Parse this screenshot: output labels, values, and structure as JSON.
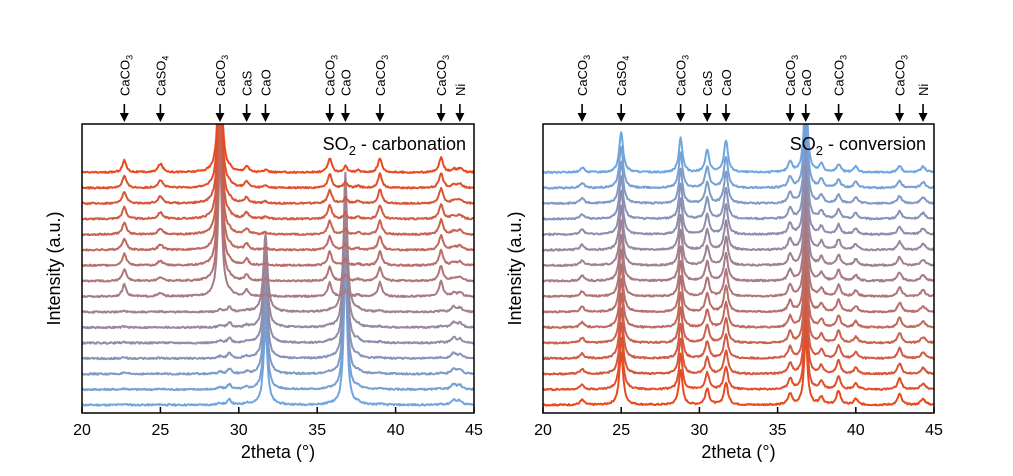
{
  "chart_data": [
    {
      "type": "line",
      "title_main": "SO",
      "title_sub": "2",
      "title_rest": " - carbonation",
      "xlabel": "2theta (°)",
      "ylabel": "Intensity (a.u.)",
      "xlim": [
        20,
        45
      ],
      "xticks": [
        "20",
        "25",
        "30",
        "35",
        "40",
        "45"
      ],
      "n_traces": 16,
      "color_start": "#e84a1e",
      "color_end": "#6fa6e0",
      "peak_markers": [
        {
          "label": "CaCO",
          "sub": "3",
          "x": 22.7
        },
        {
          "label": "CaSO",
          "sub": "4",
          "x": 25.0
        },
        {
          "label": "CaCO",
          "sub": "3",
          "x": 28.8
        },
        {
          "label": "CaS",
          "sub": "",
          "x": 30.5
        },
        {
          "label": "CaO",
          "sub": "",
          "x": 31.7
        },
        {
          "label": "CaCO",
          "sub": "3",
          "x": 35.8
        },
        {
          "label": "CaO",
          "sub": "",
          "x": 36.8
        },
        {
          "label": "CaCO",
          "sub": "3",
          "x": 39.0
        },
        {
          "label": "CaCO",
          "sub": "3",
          "x": 42.9
        },
        {
          "label": "Ni",
          "sub": "",
          "x": 44.1
        }
      ]
    },
    {
      "type": "line",
      "title_main": "SO",
      "title_sub": "2",
      "title_rest": " - conversion",
      "xlabel": "2theta (°)",
      "ylabel": "Intensity (a.u.)",
      "xlim": [
        20,
        45
      ],
      "xticks": [
        "20",
        "25",
        "30",
        "35",
        "40",
        "45"
      ],
      "n_traces": 16,
      "color_start": "#e84a1e",
      "color_end": "#6fa6e0",
      "peak_markers": [
        {
          "label": "CaCO",
          "sub": "3",
          "x": 22.5
        },
        {
          "label": "CaSO",
          "sub": "4",
          "x": 25.0
        },
        {
          "label": "CaCO",
          "sub": "3",
          "x": 28.8
        },
        {
          "label": "CaS",
          "sub": "",
          "x": 30.5
        },
        {
          "label": "CaO",
          "sub": "",
          "x": 31.7
        },
        {
          "label": "CaCO",
          "sub": "3",
          "x": 35.8
        },
        {
          "label": "CaO",
          "sub": "",
          "x": 36.8
        },
        {
          "label": "CaCO",
          "sub": "3",
          "x": 38.9
        },
        {
          "label": "CaCO",
          "sub": "3",
          "x": 42.8
        },
        {
          "label": "Ni",
          "sub": "",
          "x": 44.3
        }
      ]
    }
  ]
}
